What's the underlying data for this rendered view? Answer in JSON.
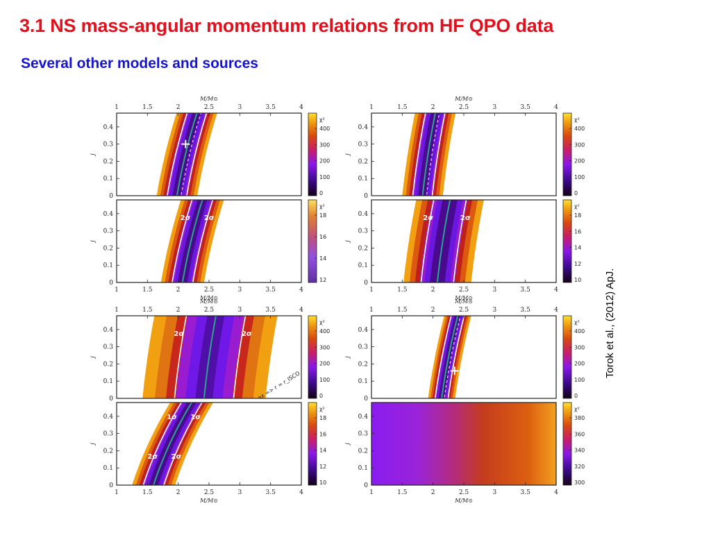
{
  "slide": {
    "title": "3.1 NS mass-angular momentum relations from HF QPO data",
    "subtitle": "Several other models and sources",
    "citation": "Torok et al., (2012) ApJ."
  },
  "figure": {
    "x_axis_label": "M/M⊙",
    "y_axis_label": "j",
    "colorbar_label": "χ²",
    "x_ticks": [
      "1",
      "1.5",
      "2",
      "2.5",
      "3",
      "3.5",
      "4"
    ],
    "y_ticks": [
      "0",
      "0.1",
      "0.2",
      "0.3",
      "0.4"
    ],
    "colors": {
      "title": "#e0101c",
      "subtitle": "#1414d2",
      "confidence_line": "#ffffff",
      "best_fit_line": "#2aa58a"
    }
  },
  "chart_data": [
    {
      "type": "heatmap",
      "panel": "top-left-upper",
      "xlim": [
        1,
        4
      ],
      "ylim": [
        0,
        0.48
      ],
      "xlabel": "M/M⊙",
      "ylabel": "j",
      "colorbar_label": "χ²",
      "colorbar_ticks": [
        "0",
        "100",
        "200",
        "300",
        "400"
      ],
      "band": {
        "m0": 1.98,
        "a": 0.47,
        "widthM": 0.33,
        "wide": false
      },
      "best_fit": [
        2.12,
        0.3
      ],
      "annotations": []
    },
    {
      "type": "heatmap",
      "panel": "top-left-lower",
      "xlim": [
        1,
        4
      ],
      "ylim": [
        0,
        0.48
      ],
      "xlabel": "M/M⊙",
      "ylabel": "j",
      "colorbar_label": "χ²",
      "colorbar_ticks": [
        "12",
        "14",
        "16",
        "18"
      ],
      "band": {
        "m0": 2.07,
        "a": 0.47,
        "widthM": 0.35,
        "wide": false
      },
      "annotations": [
        "2σ",
        "2σ"
      ]
    },
    {
      "type": "heatmap",
      "panel": "top-right-upper",
      "xlim": [
        1,
        4
      ],
      "ylim": [
        0,
        0.48
      ],
      "xlabel": "M/M⊙",
      "ylabel": "j",
      "colorbar_label": "χ²",
      "colorbar_ticks": [
        "0",
        "100",
        "200",
        "300",
        "400"
      ],
      "band": {
        "m0": 1.83,
        "a": 0.3,
        "widthM": 0.33,
        "wide": false
      },
      "best_fit": [
        2.35,
        0.24
      ],
      "annotations": []
    },
    {
      "type": "heatmap",
      "panel": "top-right-lower",
      "xlim": [
        1,
        4
      ],
      "ylim": [
        0,
        0.48
      ],
      "xlabel": "M/M⊙",
      "ylabel": "j",
      "colorbar_label": "χ²",
      "colorbar_ticks": [
        "10",
        "12",
        "14",
        "16",
        "18"
      ],
      "band": {
        "m0": 2.07,
        "a": 0.3,
        "widthM": 0.55,
        "wide": false
      },
      "annotations": [
        "2σ",
        "2σ"
      ]
    },
    {
      "type": "heatmap",
      "panel": "bottom-left-upper",
      "xlim": [
        1,
        4
      ],
      "ylim": [
        0,
        0.48
      ],
      "xlabel": "M/M⊙",
      "ylabel": "j",
      "colorbar_label": "χ²",
      "colorbar_ticks": [
        "0",
        "100",
        "200",
        "300",
        "400"
      ],
      "band": {
        "m0": 2.42,
        "a": 0.28,
        "widthM": 1.0,
        "wide": true
      },
      "annotations": [
        "2σ",
        "2σ",
        "ν_max => r = r_ISCO"
      ]
    },
    {
      "type": "heatmap",
      "panel": "bottom-left-lower",
      "xlim": [
        1,
        4
      ],
      "ylim": [
        0,
        0.48
      ],
      "xlabel": "M/M⊙",
      "ylabel": "j",
      "colorbar_label": "χ²",
      "colorbar_ticks": [
        "10",
        "12",
        "14",
        "16",
        "18"
      ],
      "band": {
        "m0": 1.6,
        "a": 0.9,
        "widthM": 0.35,
        "wide": false
      },
      "annotations": [
        "1σ",
        "1σ",
        "2σ",
        "2σ"
      ]
    },
    {
      "type": "heatmap",
      "panel": "bottom-right-upper",
      "xlim": [
        1,
        4
      ],
      "ylim": [
        0,
        0.48
      ],
      "xlabel": "M/M⊙",
      "ylabel": "j",
      "colorbar_label": "χ²",
      "colorbar_ticks": [
        "0",
        "100",
        "200",
        "300",
        "400"
      ],
      "band": {
        "m0": 2.14,
        "a": 0.38,
        "widthM": 0.22,
        "wide": false
      },
      "best_fit": [
        2.35,
        0.16
      ],
      "annotations": []
    },
    {
      "type": "heatmap",
      "panel": "bottom-right-lower",
      "xlim": [
        1,
        4
      ],
      "ylim": [
        0,
        0.48
      ],
      "xlabel": "M/M⊙",
      "ylabel": "j",
      "colorbar_label": "χ²",
      "colorbar_ticks": [
        "300",
        "320",
        "340",
        "360",
        "380"
      ],
      "gradient": true,
      "annotations": []
    }
  ]
}
